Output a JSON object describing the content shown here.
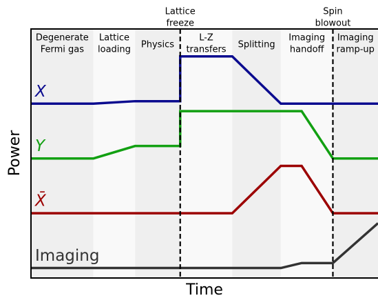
{
  "chart_data": {
    "type": "line",
    "xlabel": "Time",
    "ylabel": "Power",
    "xlim": [
      0,
      100
    ],
    "ylim": [
      0,
      100
    ],
    "phases": [
      {
        "lines": [
          "Degenerate",
          "Fermi gas"
        ],
        "start": 0,
        "end": 18,
        "color": "#efefef"
      },
      {
        "lines": [
          "Lattice",
          "loading"
        ],
        "start": 18,
        "end": 30,
        "color": "#f9f9f9"
      },
      {
        "lines": [
          "Physics"
        ],
        "start": 30,
        "end": 43,
        "color": "#efefef"
      },
      {
        "lines": [
          "L-Z",
          "transfers"
        ],
        "start": 43,
        "end": 58,
        "color": "#f9f9f9"
      },
      {
        "lines": [
          "Splitting"
        ],
        "start": 58,
        "end": 72,
        "color": "#efefef"
      },
      {
        "lines": [
          "Imaging",
          "handoff"
        ],
        "start": 72,
        "end": 87,
        "color": "#f9f9f9"
      },
      {
        "lines": [
          "Imaging",
          "ramp-up"
        ],
        "start": 87,
        "end": 100,
        "color": "#efefef"
      }
    ],
    "events": [
      {
        "lines": [
          "Lattice",
          "freeze"
        ],
        "x": 43
      },
      {
        "lines": [
          "Spin",
          "blowout"
        ],
        "x": 87
      }
    ],
    "series": [
      {
        "name": "X",
        "color": "#0b0b8f",
        "italic": true,
        "x": [
          0,
          18,
          30,
          43,
          43,
          58,
          72,
          100
        ],
        "values": [
          70,
          70,
          71,
          71,
          89,
          89,
          70,
          70
        ]
      },
      {
        "name": "Y",
        "color": "#12a012",
        "italic": true,
        "x": [
          0,
          18,
          30,
          43,
          43,
          78,
          87,
          100
        ],
        "values": [
          48,
          48,
          53,
          53,
          67,
          67,
          48,
          48
        ]
      },
      {
        "name": "X̄",
        "color": "#9c0000",
        "italic": true,
        "x": [
          0,
          58,
          72,
          78,
          87,
          100
        ],
        "values": [
          26,
          26,
          45,
          45,
          26,
          26
        ]
      },
      {
        "name": "Imaging",
        "color": "#333333",
        "italic": false,
        "x": [
          0,
          72,
          78,
          87,
          100
        ],
        "values": [
          4,
          4,
          6,
          6,
          22
        ]
      }
    ]
  }
}
